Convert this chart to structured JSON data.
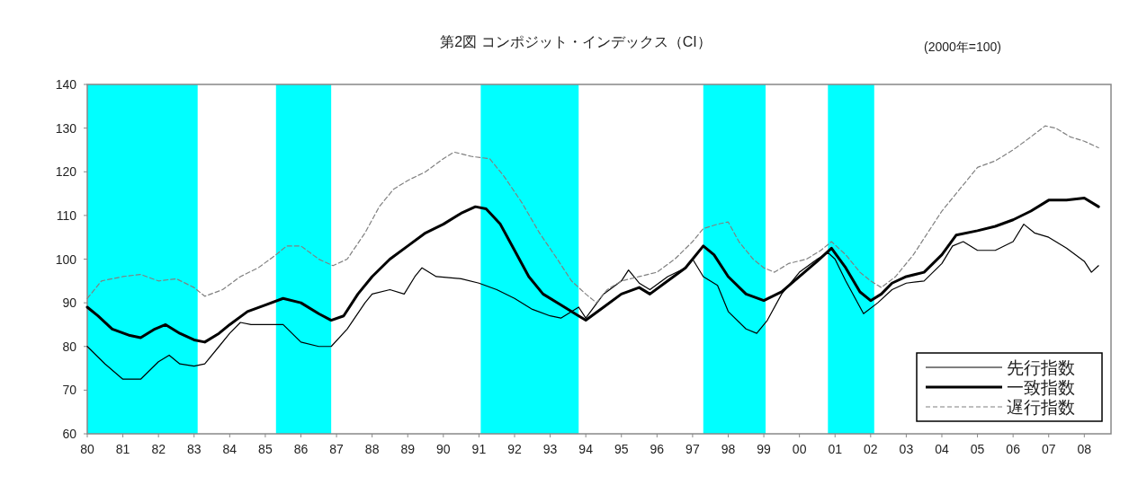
{
  "chart_data": {
    "type": "line",
    "title": "第2図 コンポジット・インデックス（CI）",
    "annotations": [
      "(2000年=100)"
    ],
    "xlim": [
      1980,
      2008.75
    ],
    "xticks": [
      {
        "value": 1980,
        "label": "80"
      },
      {
        "value": 1981,
        "label": "81"
      },
      {
        "value": 1982,
        "label": "82"
      },
      {
        "value": 1983,
        "label": "83"
      },
      {
        "value": 1984,
        "label": "84"
      },
      {
        "value": 1985,
        "label": "85"
      },
      {
        "value": 1986,
        "label": "86"
      },
      {
        "value": 1987,
        "label": "87"
      },
      {
        "value": 1988,
        "label": "88"
      },
      {
        "value": 1989,
        "label": "89"
      },
      {
        "value": 1990,
        "label": "90"
      },
      {
        "value": 1991,
        "label": "91"
      },
      {
        "value": 1992,
        "label": "92"
      },
      {
        "value": 1993,
        "label": "93"
      },
      {
        "value": 1994,
        "label": "94"
      },
      {
        "value": 1995,
        "label": "95"
      },
      {
        "value": 1996,
        "label": "96"
      },
      {
        "value": 1997,
        "label": "97"
      },
      {
        "value": 1998,
        "label": "98"
      },
      {
        "value": 1999,
        "label": "99"
      },
      {
        "value": 2000,
        "label": "00"
      },
      {
        "value": 2001,
        "label": "01"
      },
      {
        "value": 2002,
        "label": "02"
      },
      {
        "value": 2003,
        "label": "03"
      },
      {
        "value": 2004,
        "label": "04"
      },
      {
        "value": 2005,
        "label": "05"
      },
      {
        "value": 2006,
        "label": "06"
      },
      {
        "value": 2007,
        "label": "07"
      },
      {
        "value": 2008,
        "label": "08"
      }
    ],
    "ylim": [
      60,
      140
    ],
    "yticks": [
      60,
      70,
      80,
      90,
      100,
      110,
      120,
      130,
      140
    ],
    "grid": false,
    "legend": "bottom right",
    "marker": "none",
    "bands": [
      {
        "axis": "x",
        "from": 1980.0,
        "to": 1983.1,
        "color": "#00ffff"
      },
      {
        "axis": "x",
        "from": 1985.3,
        "to": 1986.85,
        "color": "#00ffff"
      },
      {
        "axis": "x",
        "from": 1991.05,
        "to": 1993.8,
        "color": "#00ffff"
      },
      {
        "axis": "x",
        "from": 1997.3,
        "to": 1999.05,
        "color": "#00ffff"
      },
      {
        "axis": "x",
        "from": 2000.8,
        "to": 2002.1,
        "color": "#00ffff"
      }
    ],
    "series": [
      {
        "name": "先行指数",
        "color": "#000000",
        "line_style": "solid",
        "x": [
          1980.0,
          1980.5,
          1981.0,
          1981.5,
          1982.0,
          1982.3,
          1982.6,
          1983.0,
          1983.3,
          1983.7,
          1984.0,
          1984.3,
          1984.6,
          1985.0,
          1985.5,
          1986.0,
          1986.5,
          1986.85,
          1987.3,
          1987.8,
          1988.0,
          1988.5,
          1988.9,
          1989.2,
          1989.4,
          1989.8,
          1990.5,
          1991.0,
          1991.5,
          1992.0,
          1992.5,
          1993.0,
          1993.3,
          1993.8,
          1994.0,
          1994.5,
          1995.0,
          1995.2,
          1995.5,
          1995.8,
          1996.3,
          1996.8,
          1997.0,
          1997.3,
          1997.7,
          1998.0,
          1998.5,
          1998.8,
          1999.1,
          1999.5,
          2000.0,
          2000.5,
          2000.8,
          2001.0,
          2001.3,
          2001.8,
          2002.2,
          2002.6,
          2003.0,
          2003.5,
          2004.0,
          2004.3,
          2004.6,
          2005.0,
          2005.5,
          2006.0,
          2006.3,
          2006.6,
          2007.0,
          2007.5,
          2008.0,
          2008.2,
          2008.4
        ],
        "values": [
          80,
          76,
          72.5,
          72.5,
          76.5,
          78,
          76,
          75.5,
          76,
          80,
          83,
          85.5,
          85,
          85,
          85,
          81,
          80,
          80,
          84,
          90,
          92,
          93,
          92,
          96,
          98,
          96,
          95.5,
          94.5,
          93,
          91,
          88.5,
          87,
          86.5,
          89,
          86.5,
          92,
          95,
          97.5,
          94.5,
          93,
          96,
          98,
          100,
          96,
          94,
          88,
          84,
          83,
          86,
          92,
          97,
          100,
          101.5,
          100,
          95,
          87.5,
          90,
          93,
          94.5,
          95,
          99,
          103,
          104,
          102,
          102,
          104,
          108,
          106,
          105,
          102.5,
          99.5,
          97,
          98.5
        ]
      },
      {
        "name": "一致指数",
        "color": "#000000",
        "line_style": "solid",
        "x": [
          1980.0,
          1980.3,
          1980.7,
          1981.2,
          1981.5,
          1981.9,
          1982.2,
          1982.6,
          1983.0,
          1983.3,
          1983.7,
          1984.0,
          1984.5,
          1985.0,
          1985.5,
          1986.0,
          1986.5,
          1986.85,
          1987.2,
          1987.6,
          1988.0,
          1988.5,
          1989.0,
          1989.5,
          1990.0,
          1990.5,
          1990.9,
          1991.2,
          1991.6,
          1992.0,
          1992.4,
          1992.8,
          1993.3,
          1993.8,
          1994.0,
          1994.5,
          1995.0,
          1995.5,
          1995.8,
          1996.3,
          1996.8,
          1997.3,
          1997.6,
          1998.0,
          1998.5,
          1999.0,
          1999.5,
          2000.0,
          2000.5,
          2000.9,
          2001.3,
          2001.7,
          2002.0,
          2002.3,
          2002.6,
          2003.0,
          2003.5,
          2004.0,
          2004.4,
          2005.0,
          2005.5,
          2006.0,
          2006.5,
          2007.0,
          2007.5,
          2008.0,
          2008.4
        ],
        "values": [
          89,
          87,
          84,
          82.5,
          82,
          84,
          85,
          83,
          81.5,
          81,
          83,
          85,
          88,
          89.5,
          91,
          90,
          87.5,
          86,
          87,
          92,
          96,
          100,
          103,
          106,
          108,
          110.5,
          112,
          111.5,
          108,
          102,
          96,
          92,
          89.5,
          87,
          86,
          89,
          92,
          93.5,
          92,
          95,
          98,
          103,
          101,
          96,
          92,
          90.5,
          92.5,
          96,
          99.5,
          102.5,
          98,
          92.5,
          90.5,
          92,
          94.5,
          96,
          97,
          101,
          105.5,
          106.5,
          107.5,
          109,
          111,
          113.5,
          113.5,
          114,
          112
        ]
      },
      {
        "name": "遅行指数",
        "color": "#808080",
        "line_style": "dashed",
        "x": [
          1980.0,
          1980.4,
          1981.0,
          1981.5,
          1982.0,
          1982.5,
          1983.0,
          1983.3,
          1983.8,
          1984.3,
          1984.8,
          1985.3,
          1985.6,
          1986.0,
          1986.5,
          1986.9,
          1987.3,
          1987.8,
          1988.2,
          1988.6,
          1989.0,
          1989.5,
          1990.0,
          1990.3,
          1990.8,
          1991.3,
          1991.7,
          1992.2,
          1992.7,
          1993.2,
          1993.6,
          1994.0,
          1994.3,
          1994.6,
          1995.0,
          1995.5,
          1996.0,
          1996.5,
          1997.0,
          1997.3,
          1997.7,
          1998.0,
          1998.3,
          1998.7,
          1999.0,
          1999.3,
          1999.7,
          2000.2,
          2000.6,
          2000.9,
          2001.3,
          2001.7,
          2002.0,
          2002.3,
          2002.7,
          2003.2,
          2003.6,
          2004.0,
          2004.5,
          2005.0,
          2005.5,
          2006.0,
          2006.5,
          2006.9,
          2007.2,
          2007.6,
          2008.0,
          2008.4
        ],
        "values": [
          91,
          95,
          96,
          96.5,
          95,
          95.5,
          93.5,
          91.5,
          93,
          96,
          98,
          101,
          103,
          103,
          100,
          98.5,
          100,
          106,
          112,
          116,
          118,
          120,
          123,
          124.5,
          123.5,
          123,
          119,
          113,
          106,
          100,
          95,
          92,
          90,
          93,
          95,
          96,
          97,
          100,
          104,
          107,
          108,
          108.5,
          104,
          100,
          98,
          97,
          99,
          100,
          102,
          104,
          101,
          97,
          95,
          93.5,
          96,
          101,
          106,
          111,
          116,
          121,
          122.5,
          125,
          128,
          130.5,
          130,
          128,
          127,
          125.5
        ]
      }
    ]
  }
}
